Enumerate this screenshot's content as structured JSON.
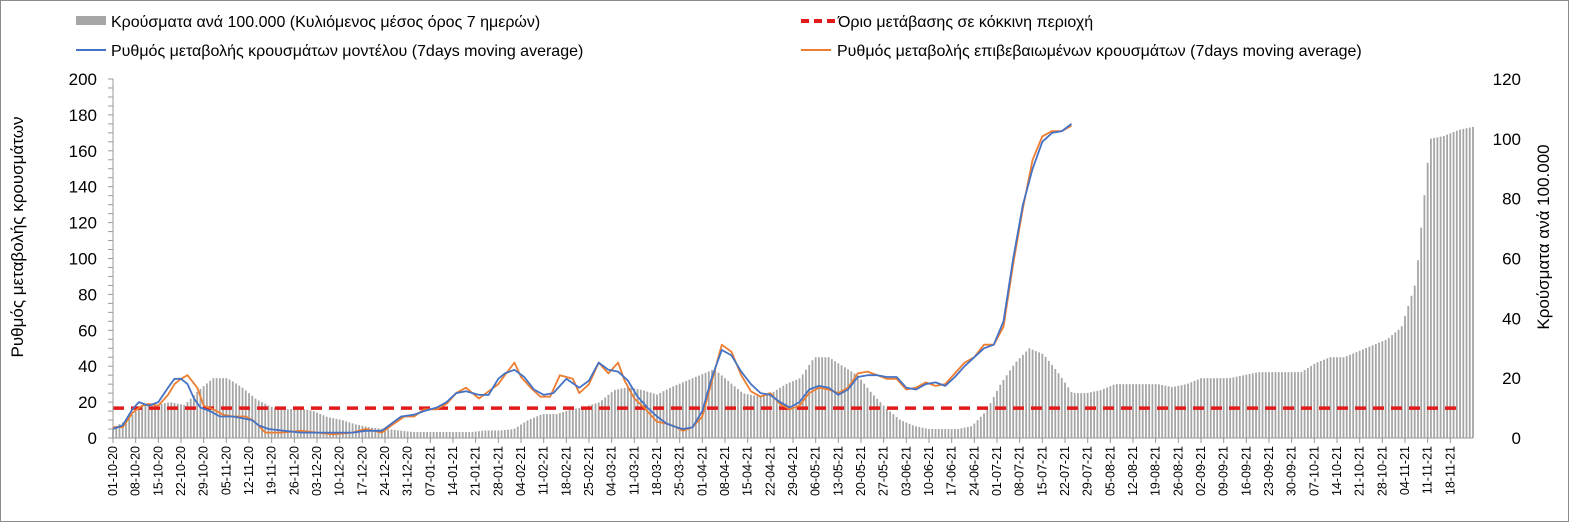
{
  "chart_data": {
    "type": "bar+line",
    "legend": {
      "placement": "top",
      "entries": [
        {
          "key": "bars",
          "label": "Κρούσματα ανά 100.000 (Κυλιόμενος μέσος όρος 7 ημερών)",
          "color": "#a6a6a6"
        },
        {
          "key": "threshold",
          "label": "Όριο μετάβασης σε κόκκινη περιοχή",
          "color": "#e31a1c"
        },
        {
          "key": "model",
          "label": "Ρυθμός μεταβολής κρουσμάτων μοντέλου (7days moving average)",
          "color": "#4472c4"
        },
        {
          "key": "confirmed",
          "label": "Ρυθμός μεταβολής επιβεβαιωμένων κρουσμάτων (7days moving average)",
          "color": "#ed7d31"
        }
      ]
    },
    "y_left": {
      "label": "Ρυθμός μεταβολής κρουσμάτων",
      "min": 0,
      "max": 200,
      "ticks": [
        0,
        20,
        40,
        60,
        80,
        100,
        120,
        140,
        160,
        180,
        200
      ]
    },
    "y_right": {
      "label": "Κρούσματα ανά 100.000",
      "min": 0,
      "max": 120,
      "ticks": [
        0,
        20,
        40,
        60,
        80,
        100,
        120
      ]
    },
    "x_tick_labels": [
      "01-10-20",
      "08-10-20",
      "15-10-20",
      "22-10-20",
      "29-10-20",
      "05-11-20",
      "12-11-20",
      "19-11-20",
      "26-11-20",
      "03-12-20",
      "10-12-20",
      "17-12-20",
      "24-12-20",
      "31-12-20",
      "07-01-21",
      "14-01-21",
      "21-01-21",
      "28-01-21",
      "04-02-21",
      "11-02-21",
      "18-02-21",
      "25-02-21",
      "04-03-21",
      "11-03-21",
      "18-03-21",
      "25-03-21",
      "01-04-21",
      "08-04-21",
      "15-04-21",
      "22-04-21",
      "29-04-21",
      "06-05-21",
      "13-05-21",
      "20-05-21",
      "27-05-21",
      "03-06-21",
      "10-06-21",
      "17-06-21",
      "24-06-21",
      "01-07-21",
      "08-07-21",
      "15-07-21",
      "22-07-21",
      "29-07-21",
      "05-08-21",
      "12-08-21",
      "19-08-21",
      "26-08-21",
      "02-09-21",
      "09-09-21",
      "16-09-21",
      "23-09-21",
      "30-09-21",
      "07-10-21",
      "14-10-21",
      "21-10-21",
      "28-10-21",
      "04-11-21",
      "11-11-21",
      "18-11-21"
    ],
    "threshold": {
      "axis": "y_right",
      "value": 10
    },
    "series": [
      {
        "key": "bars",
        "type": "bar",
        "axis": "y_right",
        "values": [
          3.5,
          6,
          11,
          11,
          12,
          11,
          16,
          20,
          20,
          17,
          13,
          10.5,
          9.5,
          10,
          9,
          7,
          6,
          4.5,
          3.5,
          3,
          2.5,
          2,
          2,
          2,
          2,
          2,
          2.5,
          2.5,
          3,
          6,
          8,
          8,
          9.5,
          10.5,
          12,
          16,
          17,
          16,
          14.5,
          17,
          19,
          21,
          23,
          19,
          15,
          14,
          15,
          18,
          20,
          27,
          27,
          24,
          21,
          15,
          10,
          6,
          4,
          3,
          3,
          3,
          4,
          9,
          18,
          25,
          30,
          28,
          22,
          15,
          15,
          16,
          18,
          18,
          18,
          18,
          17,
          18,
          20,
          20,
          20,
          21,
          22,
          22,
          22,
          22,
          25,
          27,
          27,
          29,
          31,
          33,
          37,
          52,
          100,
          101,
          103,
          104
        ]
      },
      {
        "key": "model",
        "type": "line",
        "axis": "y_left",
        "points": [
          [
            0,
            5
          ],
          [
            3,
            7
          ],
          [
            6,
            16
          ],
          [
            8,
            20
          ],
          [
            11,
            18
          ],
          [
            14,
            20
          ],
          [
            17,
            28
          ],
          [
            19,
            33
          ],
          [
            21,
            33
          ],
          [
            23,
            30
          ],
          [
            25,
            22
          ],
          [
            27,
            17
          ],
          [
            30,
            15
          ],
          [
            33,
            12
          ],
          [
            37,
            12
          ],
          [
            40,
            11
          ],
          [
            43,
            10
          ],
          [
            45,
            7
          ],
          [
            48,
            5
          ],
          [
            53,
            4
          ],
          [
            58,
            3
          ],
          [
            63,
            3
          ],
          [
            68,
            3
          ],
          [
            74,
            3
          ],
          [
            78,
            4
          ],
          [
            83,
            4
          ],
          [
            86,
            8
          ],
          [
            89,
            12
          ],
          [
            93,
            13
          ],
          [
            96,
            15
          ],
          [
            100,
            17
          ],
          [
            103,
            20
          ],
          [
            106,
            25
          ],
          [
            109,
            26
          ],
          [
            113,
            24
          ],
          [
            116,
            24
          ],
          [
            119,
            33
          ],
          [
            121,
            36
          ],
          [
            124,
            38
          ],
          [
            127,
            34
          ],
          [
            130,
            27
          ],
          [
            133,
            24
          ],
          [
            136,
            25
          ],
          [
            140,
            33
          ],
          [
            144,
            28
          ],
          [
            147,
            32
          ],
          [
            150,
            42
          ],
          [
            153,
            38
          ],
          [
            156,
            37
          ],
          [
            159,
            32
          ],
          [
            162,
            23
          ],
          [
            165,
            17
          ],
          [
            168,
            12
          ],
          [
            171,
            8
          ],
          [
            174,
            6
          ],
          [
            176,
            5
          ],
          [
            179,
            6
          ],
          [
            182,
            15
          ],
          [
            185,
            34
          ],
          [
            188,
            49
          ],
          [
            191,
            46
          ],
          [
            194,
            37
          ],
          [
            197,
            30
          ],
          [
            200,
            25
          ],
          [
            203,
            24
          ],
          [
            206,
            20
          ],
          [
            209,
            17
          ],
          [
            212,
            20
          ],
          [
            215,
            27
          ],
          [
            218,
            29
          ],
          [
            221,
            28
          ],
          [
            224,
            24
          ],
          [
            227,
            27
          ],
          [
            230,
            34
          ],
          [
            233,
            35
          ],
          [
            236,
            35
          ],
          [
            239,
            34
          ],
          [
            242,
            34
          ],
          [
            245,
            28
          ],
          [
            248,
            27
          ],
          [
            251,
            30
          ],
          [
            254,
            31
          ],
          [
            257,
            29
          ],
          [
            260,
            34
          ],
          [
            263,
            40
          ],
          [
            266,
            45
          ],
          [
            269,
            50
          ],
          [
            272,
            52
          ],
          [
            275,
            65
          ],
          [
            278,
            100
          ],
          [
            281,
            130
          ],
          [
            284,
            150
          ],
          [
            287,
            165
          ],
          [
            290,
            170
          ],
          [
            293,
            171
          ],
          [
            296,
            175
          ]
        ]
      },
      {
        "key": "confirmed",
        "type": "line",
        "axis": "y_left",
        "points": [
          [
            0,
            6
          ],
          [
            3,
            6
          ],
          [
            6,
            14
          ],
          [
            9,
            18
          ],
          [
            11,
            19
          ],
          [
            14,
            18
          ],
          [
            17,
            24
          ],
          [
            19,
            30
          ],
          [
            21,
            33
          ],
          [
            23,
            35
          ],
          [
            26,
            28
          ],
          [
            28,
            18
          ],
          [
            31,
            16
          ],
          [
            34,
            13
          ],
          [
            37,
            12
          ],
          [
            41,
            12
          ],
          [
            43,
            10
          ],
          [
            45,
            7
          ],
          [
            47,
            3
          ],
          [
            52,
            3
          ],
          [
            58,
            4
          ],
          [
            63,
            3
          ],
          [
            68,
            2
          ],
          [
            74,
            3
          ],
          [
            78,
            5
          ],
          [
            83,
            3
          ],
          [
            86,
            7
          ],
          [
            90,
            12
          ],
          [
            93,
            12
          ],
          [
            96,
            16
          ],
          [
            100,
            16
          ],
          [
            103,
            19
          ],
          [
            106,
            25
          ],
          [
            109,
            28
          ],
          [
            113,
            22
          ],
          [
            116,
            26
          ],
          [
            119,
            30
          ],
          [
            121,
            35
          ],
          [
            124,
            42
          ],
          [
            126,
            34
          ],
          [
            129,
            28
          ],
          [
            132,
            23
          ],
          [
            135,
            23
          ],
          [
            138,
            35
          ],
          [
            142,
            33
          ],
          [
            144,
            25
          ],
          [
            147,
            30
          ],
          [
            150,
            42
          ],
          [
            153,
            36
          ],
          [
            156,
            42
          ],
          [
            158,
            32
          ],
          [
            161,
            22
          ],
          [
            164,
            17
          ],
          [
            168,
            9
          ],
          [
            171,
            8
          ],
          [
            174,
            6
          ],
          [
            176,
            4
          ],
          [
            179,
            6
          ],
          [
            182,
            12
          ],
          [
            185,
            32
          ],
          [
            188,
            52
          ],
          [
            191,
            48
          ],
          [
            194,
            35
          ],
          [
            197,
            26
          ],
          [
            200,
            23
          ],
          [
            203,
            25
          ],
          [
            206,
            19
          ],
          [
            209,
            16
          ],
          [
            212,
            18
          ],
          [
            215,
            25
          ],
          [
            218,
            28
          ],
          [
            221,
            27
          ],
          [
            224,
            25
          ],
          [
            227,
            28
          ],
          [
            230,
            36
          ],
          [
            233,
            37
          ],
          [
            236,
            35
          ],
          [
            239,
            33
          ],
          [
            242,
            33
          ],
          [
            245,
            27
          ],
          [
            248,
            28
          ],
          [
            251,
            31
          ],
          [
            254,
            29
          ],
          [
            257,
            30
          ],
          [
            260,
            36
          ],
          [
            263,
            42
          ],
          [
            266,
            45
          ],
          [
            269,
            52
          ],
          [
            272,
            52
          ],
          [
            275,
            62
          ],
          [
            278,
            97
          ],
          [
            281,
            128
          ],
          [
            284,
            155
          ],
          [
            287,
            168
          ],
          [
            290,
            171
          ],
          [
            293,
            171
          ],
          [
            296,
            174
          ]
        ]
      }
    ]
  }
}
